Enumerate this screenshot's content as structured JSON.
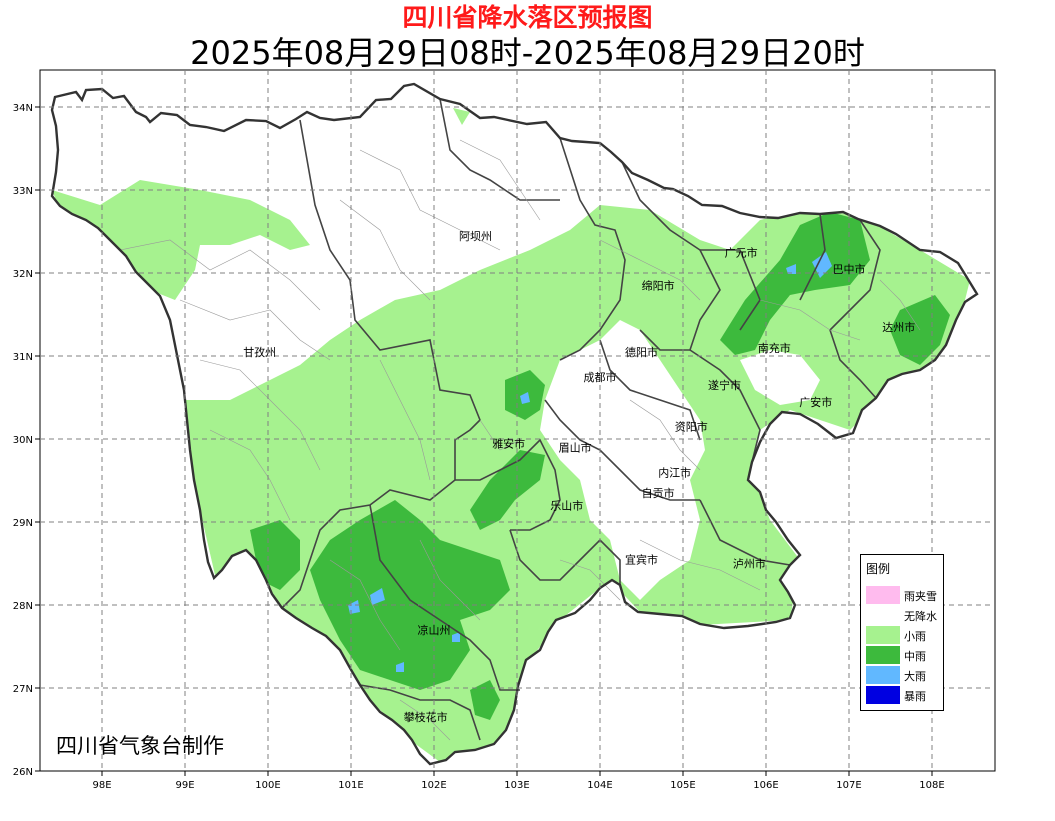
{
  "header": {
    "title": "四川省降水落区预报图",
    "subtitle": "2025年08月29日08时-2025年08月29日20时"
  },
  "credit": "四川省气象台制作",
  "axes": {
    "lat_ticks": [
      "26N",
      "27N",
      "28N",
      "29N",
      "30N",
      "31N",
      "32N",
      "33N",
      "34N"
    ],
    "lon_ticks": [
      "98E",
      "99E",
      "100E",
      "101E",
      "102E",
      "103E",
      "104E",
      "105E",
      "106E",
      "107E",
      "108E"
    ],
    "grid": "dashed"
  },
  "cities": [
    {
      "name": "阿坝州",
      "lon": 102.5,
      "lat": 32.4
    },
    {
      "name": "甘孜州",
      "lon": 99.9,
      "lat": 31.0
    },
    {
      "name": "广元市",
      "lon": 105.7,
      "lat": 32.2
    },
    {
      "name": "巴中市",
      "lon": 107.0,
      "lat": 32.0
    },
    {
      "name": "绵阳市",
      "lon": 104.7,
      "lat": 31.8
    },
    {
      "name": "德阳市",
      "lon": 104.5,
      "lat": 31.0
    },
    {
      "name": "南充市",
      "lon": 106.1,
      "lat": 31.05
    },
    {
      "name": "达州市",
      "lon": 107.6,
      "lat": 31.3
    },
    {
      "name": "成都市",
      "lon": 104.0,
      "lat": 30.7
    },
    {
      "name": "遂宁市",
      "lon": 105.5,
      "lat": 30.6
    },
    {
      "name": "广安市",
      "lon": 106.6,
      "lat": 30.4
    },
    {
      "name": "资阳市",
      "lon": 105.1,
      "lat": 30.1
    },
    {
      "name": "雅安市",
      "lon": 102.9,
      "lat": 29.9
    },
    {
      "name": "眉山市",
      "lon": 103.7,
      "lat": 29.85
    },
    {
      "name": "内江市",
      "lon": 104.9,
      "lat": 29.55
    },
    {
      "name": "自贡市",
      "lon": 104.7,
      "lat": 29.3
    },
    {
      "name": "乐山市",
      "lon": 103.6,
      "lat": 29.15
    },
    {
      "name": "宜宾市",
      "lon": 104.5,
      "lat": 28.5
    },
    {
      "name": "泸州市",
      "lon": 105.8,
      "lat": 28.45
    },
    {
      "name": "凉山州",
      "lon": 102.0,
      "lat": 27.65
    },
    {
      "name": "攀枝花市",
      "lon": 101.9,
      "lat": 26.6
    }
  ],
  "legend": {
    "title": "图例",
    "items": [
      {
        "label": "雨夹雪",
        "color": "#ffbbee"
      },
      {
        "label": "无降水",
        "color": "#ffffff"
      },
      {
        "label": "小雨",
        "color": "#a6f28f"
      },
      {
        "label": "中雨",
        "color": "#3dba3d"
      },
      {
        "label": "大雨",
        "color": "#61b8ff"
      },
      {
        "label": "暴雨",
        "color": "#0000e1"
      }
    ]
  },
  "colors": {
    "light_rain": "#a6f28f",
    "moderate_rain": "#3dba3d",
    "heavy_rain": "#61b8ff",
    "no_rain": "#ffffff",
    "boundary": "#333333",
    "county_boundary": "#9a9a9a",
    "grid": "#808080"
  }
}
